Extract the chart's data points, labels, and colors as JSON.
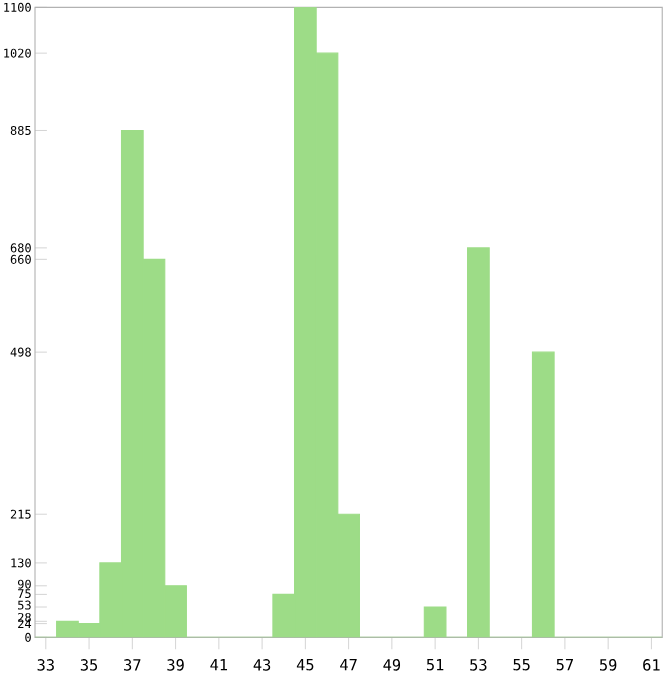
{
  "chart_data": {
    "type": "bar",
    "categories": [
      "33",
      null,
      "35",
      null,
      "37",
      null,
      "39",
      null,
      "41",
      null,
      "43",
      null,
      "45",
      null,
      "47",
      null,
      "49",
      null,
      "51",
      null,
      "53",
      null,
      "55",
      null,
      "57",
      null,
      "59",
      null,
      "61"
    ],
    "values": [
      0,
      28,
      24,
      130,
      885,
      660,
      90,
      0,
      0,
      0,
      0,
      75,
      1100,
      1020,
      215,
      0,
      0,
      0,
      53,
      0,
      680,
      0,
      0,
      498,
      0,
      0,
      0,
      0,
      0
    ],
    "color": "#9ddc87",
    "ylim": [
      0,
      1100
    ],
    "yticks": [
      0,
      24,
      28,
      53,
      75,
      90,
      130,
      215,
      498,
      660,
      680,
      885,
      1020,
      1100
    ],
    "grid": false
  }
}
